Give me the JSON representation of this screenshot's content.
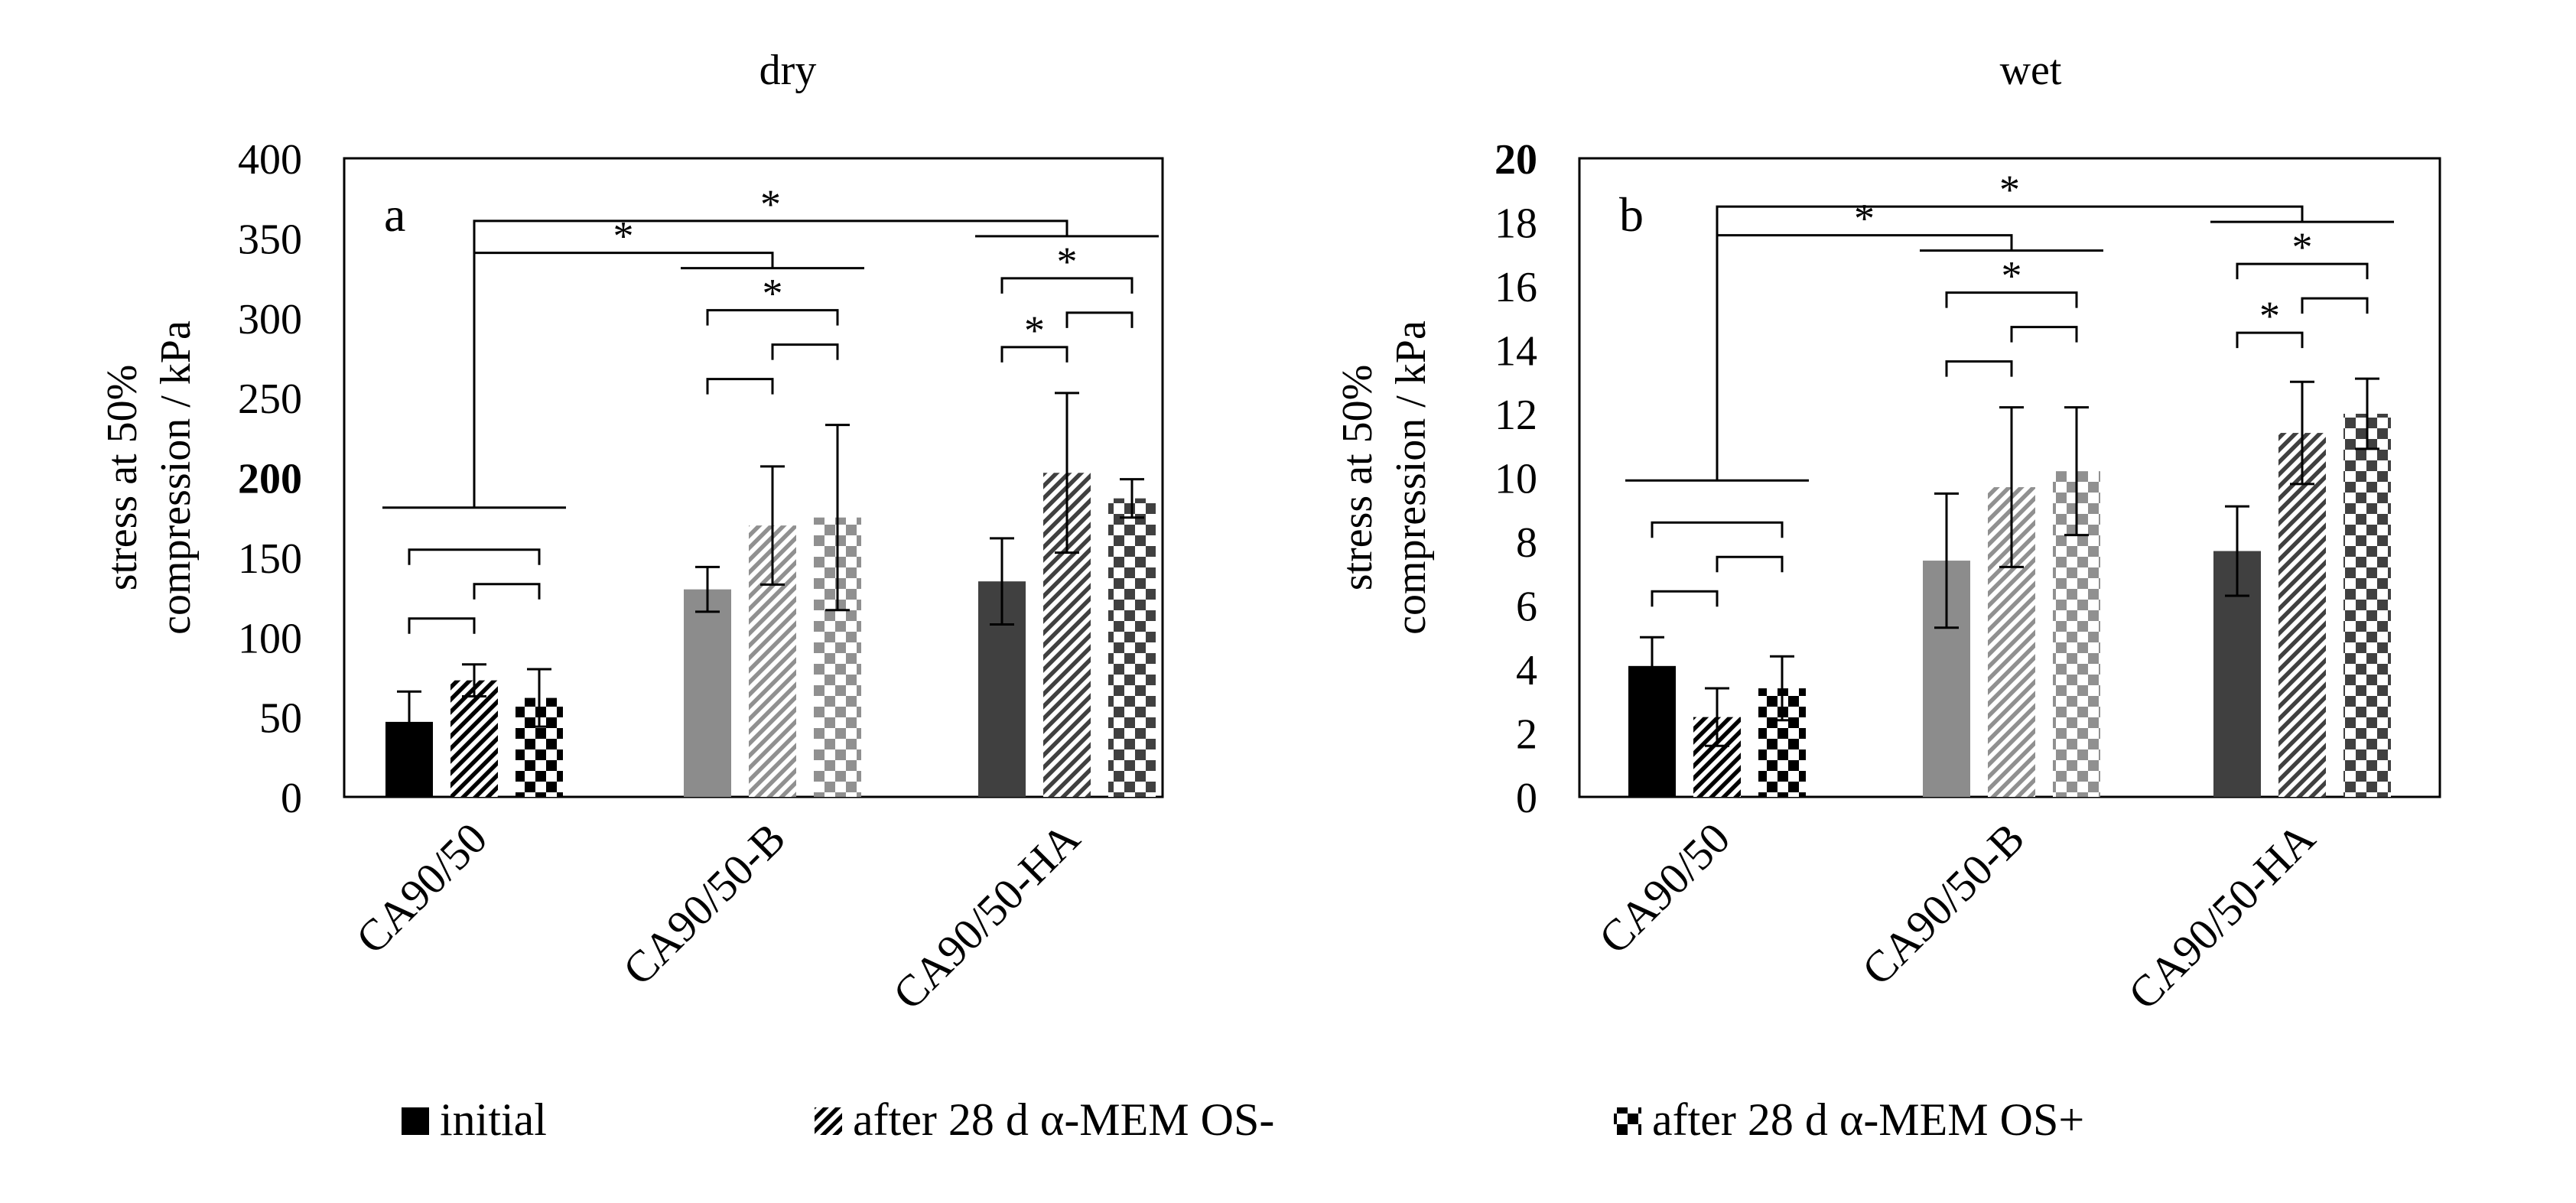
{
  "legend": [
    {
      "label": "initial",
      "pattern": "solid"
    },
    {
      "label": "after 28 d α-MEM OS-",
      "pattern": "hatch"
    },
    {
      "label": "after 28 d α-MEM OS+",
      "pattern": "checker"
    }
  ],
  "chart_data": [
    {
      "type": "bar",
      "panel_letter": "a",
      "title": "dry",
      "ylabel_line1": "stress at 50%",
      "ylabel_line2": "compression / kPa",
      "ylim": [
        0,
        400
      ],
      "yticks": [
        0,
        50,
        100,
        150,
        200,
        250,
        300,
        350,
        400
      ],
      "categories": [
        "CA90/50",
        "CA90/50-B",
        "CA90/50-HA"
      ],
      "category_colors": [
        "#000000",
        "#808080",
        "#404040"
      ],
      "series": [
        {
          "name": "initial",
          "values": [
            47,
            130,
            135
          ],
          "errors": [
            19,
            14,
            27
          ]
        },
        {
          "name": "after 28 d α-MEM OS-",
          "values": [
            73,
            170,
            203
          ],
          "errors": [
            10,
            37,
            50
          ]
        },
        {
          "name": "after 28 d α-MEM OS+",
          "values": [
            62,
            175,
            187
          ],
          "errors": [
            18,
            58,
            12
          ]
        }
      ],
      "significance_marker": "*"
    },
    {
      "type": "bar",
      "panel_letter": "b",
      "title": "wet",
      "ylabel_line1": "stress at 50%",
      "ylabel_line2": "compression / kPa",
      "ylim": [
        0,
        20
      ],
      "yticks": [
        0,
        2,
        4,
        6,
        8,
        10,
        12,
        14,
        16,
        18,
        20
      ],
      "categories": [
        "CA90/50",
        "CA90/50-B",
        "CA90/50-HA"
      ],
      "category_colors": [
        "#000000",
        "#808080",
        "#404040"
      ],
      "series": [
        {
          "name": "initial",
          "values": [
            4.1,
            7.4,
            7.7
          ],
          "errors": [
            0.9,
            2.1,
            1.4
          ]
        },
        {
          "name": "after 28 d α-MEM OS-",
          "values": [
            2.5,
            9.7,
            11.4
          ],
          "errors": [
            0.9,
            2.5,
            1.6
          ]
        },
        {
          "name": "after 28 d α-MEM OS+",
          "values": [
            3.4,
            10.2,
            12.0
          ],
          "errors": [
            1.0,
            2.0,
            1.1
          ]
        }
      ],
      "significance_marker": "*"
    }
  ]
}
